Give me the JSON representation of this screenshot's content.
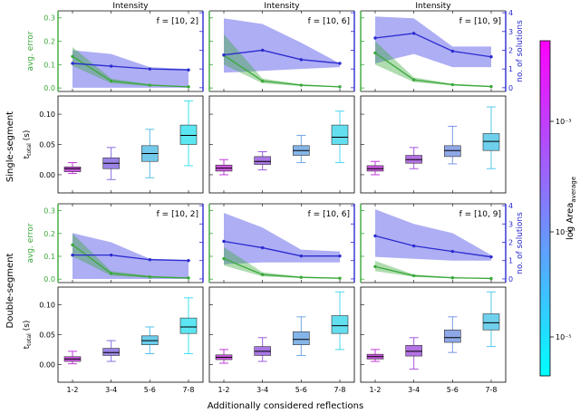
{
  "figure": {
    "column_titles": [
      "Intensity",
      "Intensity",
      "Intensity"
    ],
    "row_labels": [
      "Single-segment",
      "Double-segment"
    ],
    "xlabel": "Additionally considered reflections",
    "colorbar_label": "log Area",
    "colorbar_label_sub": "average",
    "colorbar_ticks": [
      "10⁻³",
      "10⁻⁴",
      "10⁻⁵"
    ],
    "left_axis_label": "avg. error",
    "right_axis_label": "no. of solutions",
    "box_ylabel_main": "t",
    "box_ylabel_sub": "total",
    "box_ylabel_unit": "(s)"
  },
  "colors": {
    "error": "#3aa83a",
    "solutions": "#2b2bd0",
    "solutions_band": "#8c8cf0",
    "colorbar_top": "#ff00ff",
    "colorbar_bottom": "#00ffff"
  },
  "chart_data": [
    {
      "type": "line",
      "row": "Single-segment",
      "col": 0,
      "annotation": "f = [10, 2]",
      "categories": [
        "1-2",
        "3-4",
        "5-6",
        "7-8"
      ],
      "top_yticks": [
        "0.0",
        "0.1",
        "0.2",
        "0.3"
      ],
      "right_yticks": [
        "0",
        "1",
        "2",
        "3",
        "4"
      ],
      "error": {
        "mean": [
          0.135,
          0.03,
          0.012,
          0.005
        ],
        "low": [
          0.095,
          0.02,
          0.008,
          0.003
        ],
        "high": [
          0.175,
          0.04,
          0.016,
          0.007
        ]
      },
      "solutions": {
        "mean": [
          1.3,
          1.15,
          1.0,
          0.95
        ],
        "low": [
          0.0,
          0.0,
          0.0,
          0.0
        ],
        "high": [
          2.0,
          1.8,
          1.1,
          1.0
        ]
      },
      "ylim_error": [
        -0.015,
        0.33
      ],
      "ylim_solutions": [
        -0.2,
        4.1
      ],
      "box_ylim": [
        -0.03,
        0.13
      ],
      "box_yticks": [
        "0.00",
        "0.05",
        "0.10"
      ],
      "boxes": [
        {
          "min": 0.002,
          "q1": 0.005,
          "median": 0.01,
          "q3": 0.013,
          "max": 0.02,
          "color": "#c23adc"
        },
        {
          "min": -0.008,
          "q1": 0.01,
          "median": 0.019,
          "q3": 0.028,
          "max": 0.045,
          "color": "#8a6fe0"
        },
        {
          "min": -0.005,
          "q1": 0.022,
          "median": 0.035,
          "q3": 0.048,
          "max": 0.075,
          "color": "#5ac0e6"
        },
        {
          "min": 0.015,
          "q1": 0.05,
          "median": 0.065,
          "q3": 0.082,
          "max": 0.122,
          "color": "#3ee2ee"
        }
      ]
    },
    {
      "type": "line",
      "row": "Single-segment",
      "col": 1,
      "annotation": "f = [10, 6]",
      "categories": [
        "1-2",
        "3-4",
        "5-6",
        "7-8"
      ],
      "top_yticks": [
        "0.0",
        "0.1",
        "0.2",
        "0.3"
      ],
      "right_yticks": [
        "0",
        "1",
        "2",
        "3",
        "4"
      ],
      "error": {
        "mean": [
          0.14,
          0.03,
          0.012,
          0.005
        ],
        "low": [
          0.1,
          0.02,
          0.008,
          0.003
        ],
        "high": [
          0.23,
          0.04,
          0.016,
          0.007
        ]
      },
      "solutions": {
        "mean": [
          1.75,
          2.0,
          1.5,
          1.3
        ],
        "low": [
          0.8,
          0.9,
          1.0,
          1.1
        ],
        "high": [
          3.7,
          3.4,
          2.4,
          1.3
        ]
      },
      "ylim_error": [
        -0.015,
        0.33
      ],
      "ylim_solutions": [
        -0.2,
        4.1
      ],
      "box_ylim": [
        -0.03,
        0.13
      ],
      "box_yticks": [
        "0.00",
        "0.05",
        "0.10"
      ],
      "boxes": [
        {
          "min": 0.0,
          "q1": 0.006,
          "median": 0.011,
          "q3": 0.016,
          "max": 0.025,
          "color": "#c23adc"
        },
        {
          "min": 0.008,
          "q1": 0.017,
          "median": 0.022,
          "q3": 0.03,
          "max": 0.038,
          "color": "#9a5ee0"
        },
        {
          "min": 0.02,
          "q1": 0.032,
          "median": 0.04,
          "q3": 0.048,
          "max": 0.065,
          "color": "#6fa8e4"
        },
        {
          "min": 0.02,
          "q1": 0.05,
          "median": 0.062,
          "q3": 0.082,
          "max": 0.105,
          "color": "#48d8ec"
        }
      ]
    },
    {
      "type": "line",
      "row": "Single-segment",
      "col": 2,
      "annotation": "f = [10, 9]",
      "categories": [
        "1-2",
        "3-4",
        "5-6",
        "7-8"
      ],
      "top_yticks": [
        "0.0",
        "0.1",
        "0.2",
        "0.3"
      ],
      "right_yticks": [
        "0",
        "1",
        "2",
        "3",
        "4"
      ],
      "error": {
        "mean": [
          0.15,
          0.035,
          0.014,
          0.006
        ],
        "low": [
          0.1,
          0.025,
          0.01,
          0.004
        ],
        "high": [
          0.2,
          0.045,
          0.018,
          0.008
        ]
      },
      "solutions": {
        "mean": [
          2.65,
          2.9,
          1.95,
          1.65
        ],
        "low": [
          1.3,
          1.8,
          1.1,
          1.1
        ],
        "high": [
          3.8,
          3.7,
          2.2,
          2.2
        ]
      },
      "ylim_error": [
        -0.015,
        0.33
      ],
      "ylim_solutions": [
        -0.2,
        4.1
      ],
      "box_ylim": [
        -0.03,
        0.13
      ],
      "box_yticks": [
        "0.00",
        "0.05",
        "0.10"
      ],
      "boxes": [
        {
          "min": 0.0,
          "q1": 0.006,
          "median": 0.01,
          "q3": 0.015,
          "max": 0.022,
          "color": "#c23adc"
        },
        {
          "min": 0.01,
          "q1": 0.019,
          "median": 0.025,
          "q3": 0.032,
          "max": 0.045,
          "color": "#a659de"
        },
        {
          "min": 0.018,
          "q1": 0.03,
          "median": 0.04,
          "q3": 0.048,
          "max": 0.08,
          "color": "#7a98e2"
        },
        {
          "min": 0.01,
          "q1": 0.04,
          "median": 0.055,
          "q3": 0.068,
          "max": 0.112,
          "color": "#55c8ea"
        }
      ]
    },
    {
      "type": "line",
      "row": "Double-segment",
      "col": 0,
      "annotation": "f = [10, 2]",
      "categories": [
        "1-2",
        "3-4",
        "5-6",
        "7-8"
      ],
      "top_yticks": [
        "0.0",
        "0.1",
        "0.2",
        "0.3"
      ],
      "right_yticks": [
        "0",
        "1",
        "2",
        "3",
        "4"
      ],
      "error": {
        "mean": [
          0.15,
          0.025,
          0.01,
          0.005
        ],
        "low": [
          0.1,
          0.015,
          0.006,
          0.003
        ],
        "high": [
          0.2,
          0.035,
          0.014,
          0.007
        ]
      },
      "solutions": {
        "mean": [
          1.3,
          1.3,
          1.05,
          1.0
        ],
        "low": [
          0.0,
          0.0,
          0.0,
          0.0
        ],
        "high": [
          2.5,
          2.0,
          1.1,
          1.05
        ]
      },
      "ylim_error": [
        -0.015,
        0.33
      ],
      "ylim_solutions": [
        -0.2,
        4.1
      ],
      "box_ylim": [
        -0.03,
        0.13
      ],
      "box_yticks": [
        "0.00",
        "0.05",
        "0.10"
      ],
      "boxes": [
        {
          "min": 0.001,
          "q1": 0.005,
          "median": 0.009,
          "q3": 0.013,
          "max": 0.022,
          "color": "#c23adc"
        },
        {
          "min": 0.005,
          "q1": 0.015,
          "median": 0.02,
          "q3": 0.027,
          "max": 0.04,
          "color": "#8a70e0"
        },
        {
          "min": 0.018,
          "q1": 0.033,
          "median": 0.04,
          "q3": 0.048,
          "max": 0.063,
          "color": "#50c4e8"
        },
        {
          "min": 0.018,
          "q1": 0.052,
          "median": 0.063,
          "q3": 0.078,
          "max": 0.112,
          "color": "#3ee2ee"
        }
      ]
    },
    {
      "type": "line",
      "row": "Double-segment",
      "col": 1,
      "annotation": "f = [10, 6]",
      "categories": [
        "1-2",
        "3-4",
        "5-6",
        "7-8"
      ],
      "top_yticks": [
        "0.0",
        "0.1",
        "0.2",
        "0.3"
      ],
      "right_yticks": [
        "0",
        "1",
        "2",
        "3",
        "4"
      ],
      "error": {
        "mean": [
          0.09,
          0.02,
          0.008,
          0.004
        ],
        "low": [
          0.06,
          0.012,
          0.005,
          0.002
        ],
        "high": [
          0.14,
          0.03,
          0.011,
          0.006
        ]
      },
      "solutions": {
        "mean": [
          2.05,
          1.7,
          1.25,
          1.25
        ],
        "low": [
          0.8,
          0.9,
          0.9,
          0.9
        ],
        "high": [
          3.6,
          2.8,
          1.6,
          1.5
        ]
      },
      "ylim_error": [
        -0.015,
        0.33
      ],
      "ylim_solutions": [
        -0.2,
        4.1
      ],
      "box_ylim": [
        -0.03,
        0.13
      ],
      "box_yticks": [
        "0.00",
        "0.05",
        "0.10"
      ],
      "boxes": [
        {
          "min": 0.002,
          "q1": 0.008,
          "median": 0.012,
          "q3": 0.016,
          "max": 0.025,
          "color": "#c23adc"
        },
        {
          "min": 0.005,
          "q1": 0.015,
          "median": 0.022,
          "q3": 0.03,
          "max": 0.045,
          "color": "#9a5ee0"
        },
        {
          "min": 0.015,
          "q1": 0.033,
          "median": 0.042,
          "q3": 0.055,
          "max": 0.08,
          "color": "#6fa8e4"
        },
        {
          "min": 0.025,
          "q1": 0.052,
          "median": 0.065,
          "q3": 0.082,
          "max": 0.122,
          "color": "#48d8ec"
        }
      ]
    },
    {
      "type": "line",
      "row": "Double-segment",
      "col": 2,
      "annotation": "f = [10, 9]",
      "categories": [
        "1-2",
        "3-4",
        "5-6",
        "7-8"
      ],
      "top_yticks": [
        "0.0",
        "0.1",
        "0.2",
        "0.3"
      ],
      "right_yticks": [
        "0",
        "1",
        "2",
        "3",
        "4"
      ],
      "error": {
        "mean": [
          0.055,
          0.015,
          0.006,
          0.003
        ],
        "low": [
          0.035,
          0.01,
          0.004,
          0.002
        ],
        "high": [
          0.08,
          0.02,
          0.008,
          0.004
        ]
      },
      "solutions": {
        "mean": [
          2.35,
          1.8,
          1.5,
          1.2
        ],
        "low": [
          1.2,
          1.1,
          1.0,
          1.0
        ],
        "high": [
          3.8,
          3.0,
          2.5,
          1.3
        ]
      },
      "ylim_error": [
        -0.015,
        0.33
      ],
      "ylim_solutions": [
        -0.2,
        4.1
      ],
      "box_ylim": [
        -0.03,
        0.13
      ],
      "box_yticks": [
        "0.00",
        "0.05",
        "0.10"
      ],
      "boxes": [
        {
          "min": 0.005,
          "q1": 0.009,
          "median": 0.013,
          "q3": 0.017,
          "max": 0.025,
          "color": "#c23adc"
        },
        {
          "min": -0.008,
          "q1": 0.014,
          "median": 0.022,
          "q3": 0.032,
          "max": 0.045,
          "color": "#a659de"
        },
        {
          "min": 0.02,
          "q1": 0.037,
          "median": 0.045,
          "q3": 0.058,
          "max": 0.08,
          "color": "#7a98e2"
        },
        {
          "min": 0.03,
          "q1": 0.058,
          "median": 0.07,
          "q3": 0.085,
          "max": 0.122,
          "color": "#55c8ea"
        }
      ]
    }
  ]
}
